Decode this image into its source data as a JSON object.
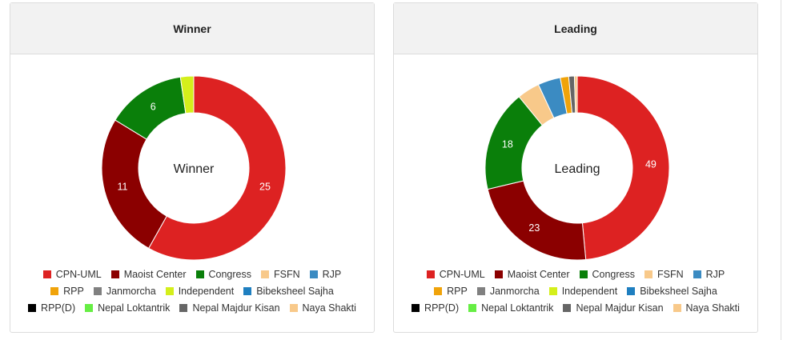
{
  "chart_data": [
    {
      "type": "pie",
      "title": "Winner",
      "center_label": "Winner",
      "categories": [
        "CPN-UML",
        "Maoist Center",
        "Congress",
        "FSFN",
        "RJP",
        "RPP",
        "Janmorcha",
        "Independent",
        "Bibeksheel Sajha",
        "RPP(D)",
        "Nepal Loktantrik",
        "Nepal Majdur Kisan",
        "Naya Shakti"
      ],
      "values": [
        25,
        11,
        6,
        0,
        0,
        0,
        0,
        1,
        0,
        0,
        0,
        0,
        0
      ],
      "data_labels": [
        "25",
        "11",
        "6",
        "",
        "",
        "",
        "",
        "",
        "",
        "",
        "",
        "",
        ""
      ]
    },
    {
      "type": "pie",
      "title": "Leading",
      "center_label": "Leading",
      "categories": [
        "CPN-UML",
        "Maoist Center",
        "Congress",
        "FSFN",
        "RJP",
        "RPP",
        "Janmorcha",
        "Independent",
        "Bibeksheel Sajha",
        "RPP(D)",
        "Nepal Loktantrik",
        "Nepal Majdur Kisan",
        "Naya Shakti"
      ],
      "values": [
        49,
        23,
        18,
        4,
        4,
        1.5,
        0,
        0,
        0,
        0,
        0,
        1,
        0.5
      ],
      "data_labels": [
        "49",
        "23",
        "18",
        "",
        "",
        "",
        "",
        "",
        "",
        "",
        "",
        "",
        ""
      ]
    }
  ],
  "colors": [
    "#dd2222",
    "#8b0000",
    "#0a7f0a",
    "#f8c98a",
    "#3b8bc2",
    "#f0a30a",
    "#808080",
    "#d4ef1b",
    "#1f7fc0",
    "#000000",
    "#66ee44",
    "#666666",
    "#f8c98a"
  ]
}
